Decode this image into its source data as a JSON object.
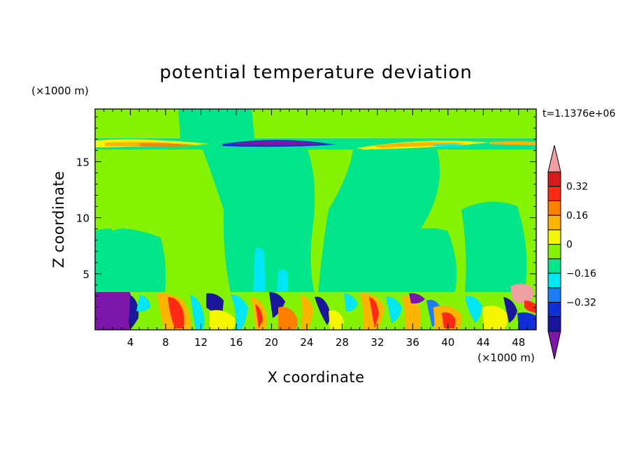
{
  "chart_data": {
    "type": "heatmap",
    "title": "potential temperature deviation",
    "xlabel": "X coordinate",
    "ylabel": "Z coordinate",
    "x_unit": "(×1000 m)",
    "y_unit": "(×1000 m)",
    "time_label": "t=1.1376e+06",
    "xlim": [
      0,
      50
    ],
    "ylim": [
      0,
      19.7
    ],
    "x_ticks": [
      4,
      8,
      12,
      16,
      20,
      24,
      28,
      32,
      36,
      40,
      44,
      48
    ],
    "y_ticks": [
      5,
      10,
      15
    ],
    "legend_position": "right",
    "colorbar": {
      "levels": [
        -0.48,
        -0.4,
        -0.32,
        -0.24,
        -0.16,
        -0.08,
        0,
        0.08,
        0.16,
        0.24,
        0.32,
        0.4
      ],
      "labeled_values": [
        "0.32",
        "0.16",
        "0",
        "−0.16",
        "−0.32"
      ],
      "colors": [
        "#7b16a8",
        "#1a179a",
        "#0f2fd8",
        "#1e7cf4",
        "#00e6f2",
        "#00e58a",
        "#84f200",
        "#f6f600",
        "#ffb400",
        "#ff7f00",
        "#ff2a14",
        "#d41a1a",
        "#f0a0a0"
      ]
    }
  }
}
